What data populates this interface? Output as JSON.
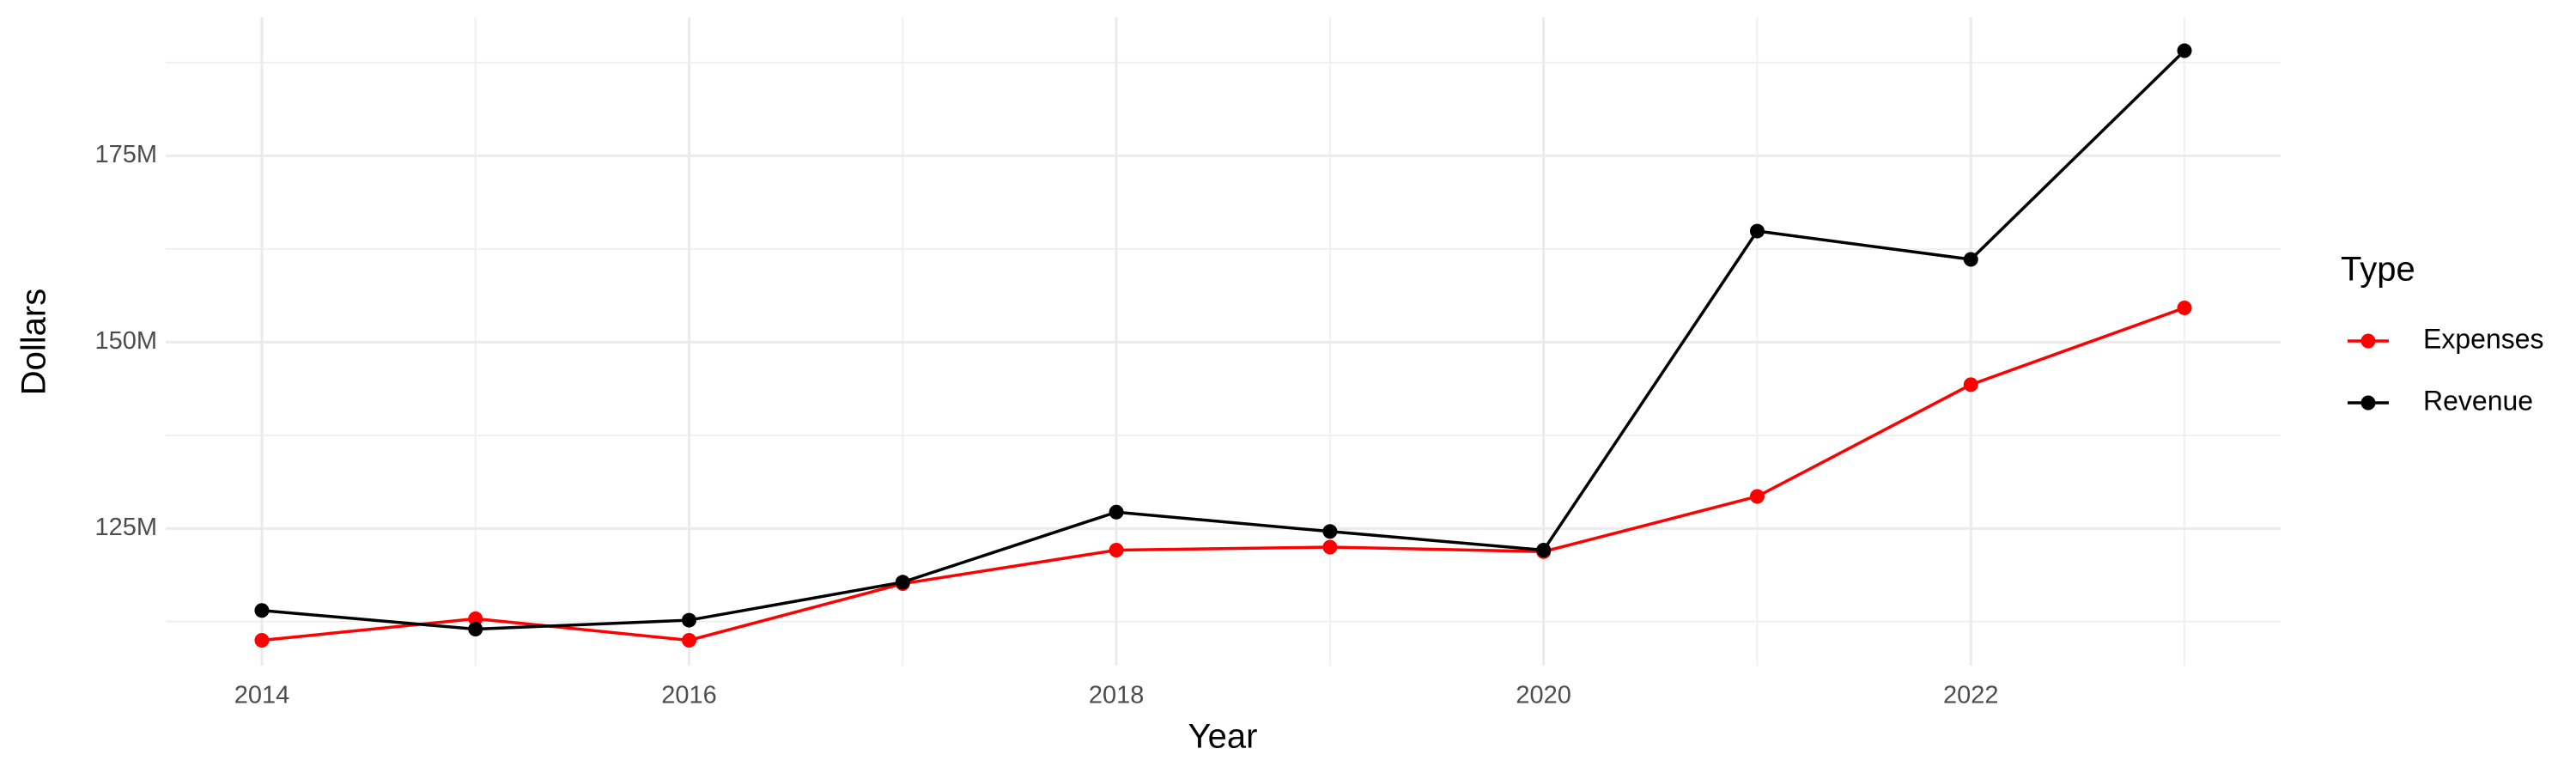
{
  "chart_data": {
    "type": "line",
    "x_label": "Year",
    "y_label": "Dollars",
    "legend_title": "Type",
    "x": [
      2014,
      2015,
      2016,
      2017,
      2018,
      2019,
      2020,
      2021,
      2022,
      2023
    ],
    "series": [
      {
        "name": "Expenses",
        "color": "#ff0000",
        "values": [
          110000000,
          112900000,
          110000000,
          117600000,
          122100000,
          122500000,
          121900000,
          129300000,
          144300000,
          154600000
        ]
      },
      {
        "name": "Revenue",
        "color": "#000000",
        "values": [
          114000000,
          111500000,
          112700000,
          117800000,
          127200000,
          124600000,
          122100000,
          164900000,
          161100000,
          189100000
        ]
      }
    ],
    "xlim": [
      2013.55,
      2023.45
    ],
    "xticks": [
      2014,
      2016,
      2018,
      2020,
      2022
    ],
    "ylim": [
      106600000,
      193600000
    ],
    "yticks": [
      {
        "value": 125000000,
        "label": "125M"
      },
      {
        "value": 150000000,
        "label": "150M"
      },
      {
        "value": 175000000,
        "label": "175M"
      }
    ],
    "grid": true,
    "legend": "right"
  }
}
